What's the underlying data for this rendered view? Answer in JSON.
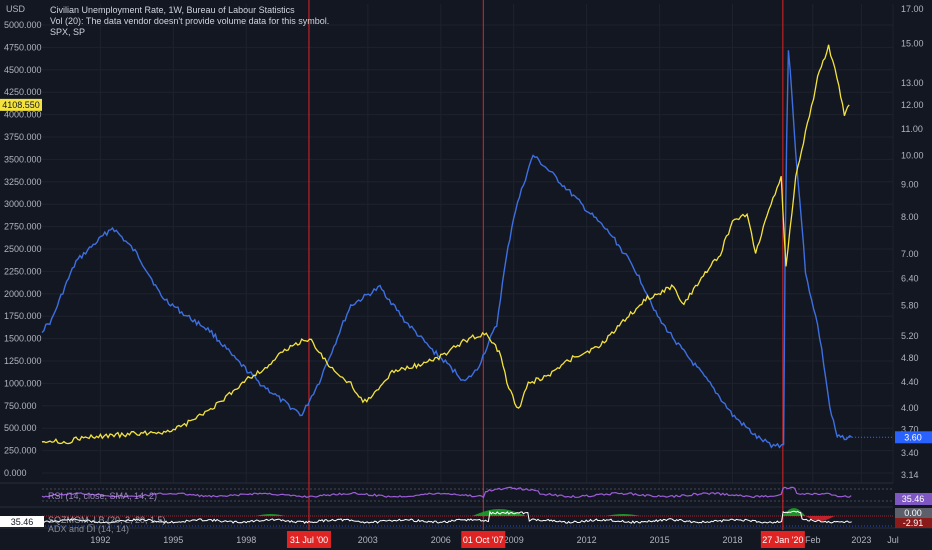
{
  "header": {
    "currency": "USD",
    "title": "Civilian Unemployment Rate, 1W, Bureau of Labour Statistics",
    "vol_note": "Vol (20): The data vendor doesn't provide volume data for this symbol.",
    "symbol": "SPX, SP"
  },
  "colors": {
    "background": "#131722",
    "spx": "#f5e33d",
    "unemployment": "#3d6fe0",
    "vline": "#e02424",
    "rsi": "#9c5dd6",
    "mom_pos": "#1ea12a",
    "mom_neg": "#d4242c",
    "adx": "#ffffff"
  },
  "chart_data": [
    {
      "type": "line",
      "x_axis": {
        "ticks": [
          "1992",
          "1995",
          "1998",
          "2003",
          "2006",
          "2009",
          "2012",
          "2015",
          "2018",
          "Feb",
          "2023",
          "Jul"
        ],
        "range": [
          1989.6,
          2024.6
        ]
      },
      "left_axis": {
        "ticks": [
          "5000.000",
          "4750.000",
          "4500.000",
          "4250.000",
          "4000.000",
          "3750.000",
          "3500.000",
          "3250.000",
          "3000.000",
          "2750.000",
          "2500.000",
          "2250.000",
          "2000.000",
          "1750.000",
          "1500.000",
          "1250.000",
          "1000.000",
          "750.000",
          "500.000",
          "250.000",
          "0.000"
        ],
        "range": [
          0,
          5000
        ]
      },
      "right_axis": {
        "ticks": [
          "17.00",
          "15.00",
          "13.00",
          "12.00",
          "11.00",
          "10.00",
          "9.00",
          "8.00",
          "7.00",
          "6.40",
          "5.80",
          "5.20",
          "4.80",
          "4.40",
          "4.00",
          "3.70",
          "3.40",
          "3.14"
        ],
        "scale": "log"
      },
      "last_price_label": "4108.550",
      "last_rate_label": "3.60",
      "event_markers": [
        "31 Jul '00",
        "01 Oct '07",
        "27 Jan '20"
      ],
      "series": [
        {
          "name": "SPX, SP",
          "axis": "left",
          "points": [
            [
              1989.6,
              370
            ],
            [
              1990.5,
              340
            ],
            [
              1991.0,
              380
            ],
            [
              1992.0,
              410
            ],
            [
              1994.0,
              450
            ],
            [
              1995.0,
              470
            ],
            [
              1996.0,
              620
            ],
            [
              1997.0,
              800
            ],
            [
              1998.0,
              1050
            ],
            [
              1998.7,
              1150
            ],
            [
              1999.5,
              1350
            ],
            [
              2000.2,
              1460
            ],
            [
              2000.6,
              1500
            ],
            [
              2001.0,
              1350
            ],
            [
              2001.7,
              1100
            ],
            [
              2002.3,
              1000
            ],
            [
              2002.8,
              800
            ],
            [
              2003.2,
              850
            ],
            [
              2004.0,
              1130
            ],
            [
              2005.0,
              1200
            ],
            [
              2006.0,
              1300
            ],
            [
              2007.0,
              1480
            ],
            [
              2007.8,
              1560
            ],
            [
              2008.4,
              1350
            ],
            [
              2008.8,
              950
            ],
            [
              2009.2,
              700
            ],
            [
              2009.6,
              1000
            ],
            [
              2010.5,
              1100
            ],
            [
              2011.5,
              1300
            ],
            [
              2012.5,
              1400
            ],
            [
              2013.5,
              1700
            ],
            [
              2014.5,
              1950
            ],
            [
              2015.5,
              2080
            ],
            [
              2016.0,
              1900
            ],
            [
              2016.8,
              2200
            ],
            [
              2017.5,
              2450
            ],
            [
              2018.0,
              2800
            ],
            [
              2018.6,
              2900
            ],
            [
              2018.95,
              2450
            ],
            [
              2019.5,
              2950
            ],
            [
              2020.0,
              3300
            ],
            [
              2020.2,
              2300
            ],
            [
              2020.6,
              3300
            ],
            [
              2021.0,
              3800
            ],
            [
              2021.5,
              4400
            ],
            [
              2021.95,
              4770
            ],
            [
              2022.3,
              4400
            ],
            [
              2022.6,
              4000
            ],
            [
              2022.8,
              4108.55
            ]
          ]
        },
        {
          "name": "Civilian Unemployment Rate, 1W, Bureau of Labour Statistics",
          "axis": "right",
          "points": [
            [
              1989.6,
              5.3
            ],
            [
              1990.0,
              5.5
            ],
            [
              1991.0,
              6.8
            ],
            [
              1992.5,
              7.7
            ],
            [
              1993.5,
              7.0
            ],
            [
              1994.5,
              6.0
            ],
            [
              1995.5,
              5.6
            ],
            [
              1996.5,
              5.3
            ],
            [
              1997.5,
              4.8
            ],
            [
              1998.5,
              4.4
            ],
            [
              1999.5,
              4.1
            ],
            [
              2000.3,
              3.9
            ],
            [
              2001.0,
              4.4
            ],
            [
              2001.6,
              5.0
            ],
            [
              2002.3,
              5.8
            ],
            [
              2003.5,
              6.2
            ],
            [
              2004.5,
              5.5
            ],
            [
              2005.5,
              5.0
            ],
            [
              2006.5,
              4.6
            ],
            [
              2007.0,
              4.4
            ],
            [
              2007.5,
              4.6
            ],
            [
              2008.3,
              5.4
            ],
            [
              2009.0,
              8.0
            ],
            [
              2009.8,
              10.0
            ],
            [
              2011.0,
              9.0
            ],
            [
              2012.0,
              8.2
            ],
            [
              2013.0,
              7.5
            ],
            [
              2014.0,
              6.6
            ],
            [
              2015.0,
              5.5
            ],
            [
              2016.0,
              4.9
            ],
            [
              2017.0,
              4.4
            ],
            [
              2018.0,
              3.9
            ],
            [
              2019.0,
              3.6
            ],
            [
              2019.6,
              3.5
            ],
            [
              2020.1,
              3.5
            ],
            [
              2020.3,
              14.7
            ],
            [
              2020.6,
              10.0
            ],
            [
              2021.0,
              6.5
            ],
            [
              2021.5,
              5.4
            ],
            [
              2022.0,
              4.0
            ],
            [
              2022.3,
              3.6
            ],
            [
              2022.9,
              3.6
            ]
          ]
        }
      ]
    },
    {
      "type": "line",
      "label": "RSI (14, close, SMA, 14, 2)",
      "value_label": "35.46",
      "left_value_label": "35.46"
    },
    {
      "type": "area",
      "label": "SQZMOM_LB (20, 2, 20, 1.5)",
      "value_label": "0.00",
      "neg_value_label": "-2.91"
    },
    {
      "type": "line",
      "label": "ADX and DI (14, 14)"
    }
  ]
}
